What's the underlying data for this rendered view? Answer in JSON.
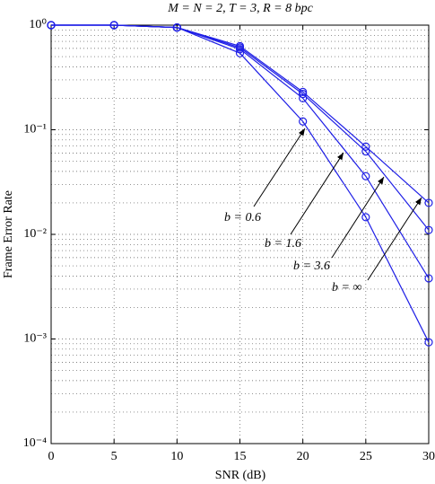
{
  "chart_data": {
    "type": "line",
    "title": "M = N = 2, T = 3, R = 8 bpc",
    "xlabel": "SNR (dB)",
    "ylabel": "Frame Error Rate",
    "x": [
      0,
      5,
      10,
      15,
      20,
      25,
      30
    ],
    "series": [
      {
        "name": "b = 0.6",
        "color": "#1f1fe6",
        "values": [
          1,
          1,
          0.95,
          0.54,
          0.12,
          0.0146,
          0.00093
        ]
      },
      {
        "name": "b = 1.6",
        "color": "#1f1fe6",
        "values": [
          1,
          1,
          0.95,
          0.59,
          0.2,
          0.036,
          0.0038
        ]
      },
      {
        "name": "b = 3.6",
        "color": "#1f1fe6",
        "values": [
          1,
          1,
          0.95,
          0.61,
          0.22,
          0.062,
          0.011
        ]
      },
      {
        "name": "b = ∞",
        "color": "#1f1fe6",
        "values": [
          1,
          1,
          0.95,
          0.63,
          0.23,
          0.069,
          0.02
        ]
      }
    ],
    "xlim": [
      0,
      30
    ],
    "xticks": [
      0,
      5,
      10,
      15,
      20,
      25,
      30
    ],
    "ylim": [
      0.0001,
      1
    ],
    "log_y": true,
    "yticks": [
      {
        "value": 1,
        "label": "10⁰"
      },
      {
        "value": 0.1,
        "label": "10⁻¹"
      },
      {
        "value": 0.01,
        "label": "10⁻²"
      },
      {
        "value": 0.001,
        "label": "10⁻³"
      },
      {
        "value": 0.0001,
        "label": "10⁻⁴"
      }
    ],
    "grid": true
  }
}
